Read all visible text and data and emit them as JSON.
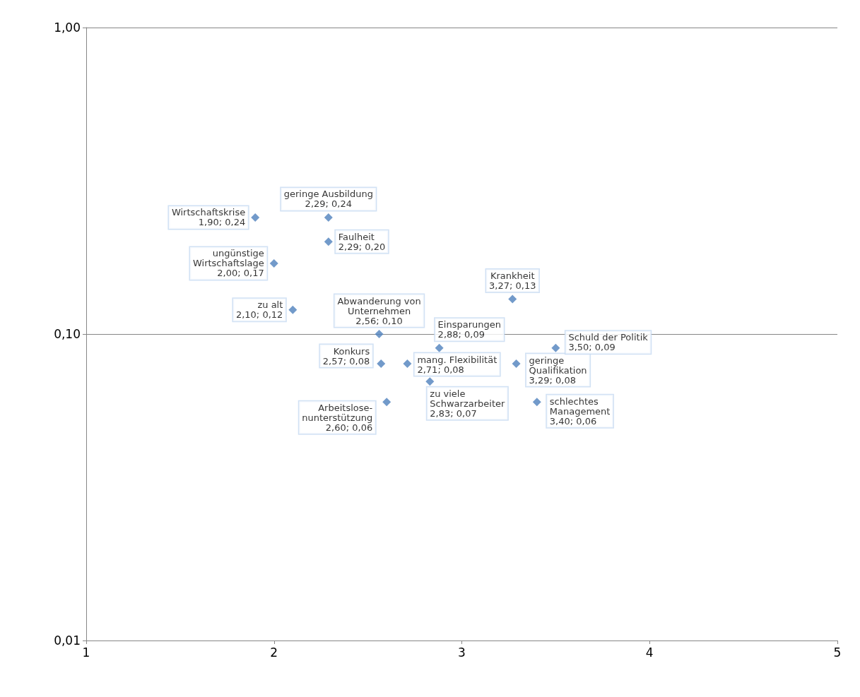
{
  "chart_data": {
    "type": "scatter",
    "log": "y",
    "grid": "y",
    "legend": false,
    "marker": "diamond",
    "xlim": [
      1,
      5
    ],
    "xticks": [
      1,
      2,
      3,
      4,
      5
    ],
    "ylim": [
      0.01,
      1
    ],
    "yticks": [
      {
        "value": 0.01,
        "label": "0,01"
      },
      {
        "value": 0.1,
        "label": "0,10"
      },
      {
        "value": 1,
        "label": "1,00"
      }
    ],
    "series": [
      {
        "name": "Wirtschaftskrise",
        "color": "#4f81bd",
        "x": [
          1.9
        ],
        "values": [
          0.24
        ],
        "value_labels": [
          "1,90; 0,24"
        ]
      },
      {
        "name": "geringe Ausbildung",
        "color": "#4f81bd",
        "x": [
          2.29
        ],
        "values": [
          0.24
        ],
        "value_labels": [
          "2,29; 0,24"
        ]
      },
      {
        "name": "Faulheit",
        "color": "#4f81bd",
        "x": [
          2.29
        ],
        "values": [
          0.2
        ],
        "value_labels": [
          "2,29; 0,20"
        ]
      },
      {
        "name": "ungünstige\nWirtschaftslage",
        "color": "#4f81bd",
        "x": [
          2.0
        ],
        "values": [
          0.17
        ],
        "value_labels": [
          "2,00; 0,17"
        ]
      },
      {
        "name": "zu alt",
        "color": "#4f81bd",
        "x": [
          2.1
        ],
        "values": [
          0.12
        ],
        "value_labels": [
          "2,10; 0,12"
        ]
      },
      {
        "name": "Abwanderung von\nUnternehmen",
        "color": "#4f81bd",
        "x": [
          2.56
        ],
        "values": [
          0.1
        ],
        "value_labels": [
          "2,56; 0,10"
        ]
      },
      {
        "name": "Konkurs",
        "color": "#4f81bd",
        "x": [
          2.57
        ],
        "values": [
          0.08
        ],
        "value_labels": [
          "2,57; 0,08"
        ]
      },
      {
        "name": "Arbeitslose-\nnunterstützung",
        "color": "#4f81bd",
        "x": [
          2.6
        ],
        "values": [
          0.06
        ],
        "value_labels": [
          "2,60; 0,06"
        ]
      },
      {
        "name": "mang. Flexibilität",
        "color": "#4f81bd",
        "x": [
          2.71
        ],
        "values": [
          0.08
        ],
        "value_labels": [
          "2,71; 0,08"
        ]
      },
      {
        "name": "zu viele\nSchwarzarbeiter",
        "color": "#4f81bd",
        "x": [
          2.83
        ],
        "values": [
          0.07
        ],
        "value_labels": [
          "2,83; 0,07"
        ]
      },
      {
        "name": "Einsparungen",
        "color": "#4f81bd",
        "x": [
          2.88
        ],
        "values": [
          0.09
        ],
        "value_labels": [
          "2,88; 0,09"
        ]
      },
      {
        "name": "Krankheit",
        "color": "#4f81bd",
        "x": [
          3.27
        ],
        "values": [
          0.13
        ],
        "value_labels": [
          "3,27; 0,13"
        ]
      },
      {
        "name": "geringe\nQualifikation",
        "color": "#4f81bd",
        "x": [
          3.29
        ],
        "values": [
          0.08
        ],
        "value_labels": [
          "3,29; 0,08"
        ]
      },
      {
        "name": "schlechtes\nManagement",
        "color": "#4f81bd",
        "x": [
          3.4
        ],
        "values": [
          0.06
        ],
        "value_labels": [
          "3,40; 0,06"
        ]
      },
      {
        "name": "Schuld der Politik",
        "color": "#4f81bd",
        "x": [
          3.5
        ],
        "values": [
          0.09
        ],
        "value_labels": [
          "3,50; 0,09"
        ]
      }
    ]
  }
}
